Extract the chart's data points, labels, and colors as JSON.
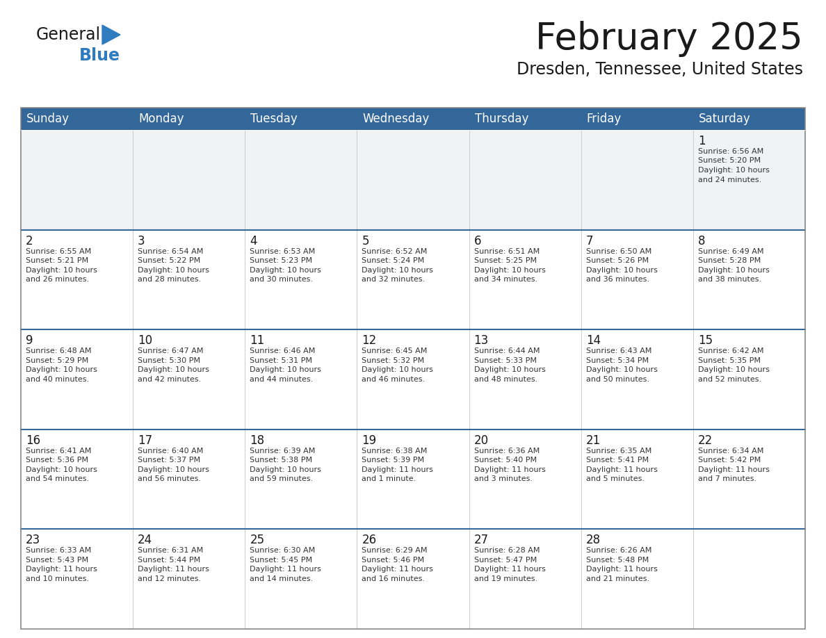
{
  "title": "February 2025",
  "subtitle": "Dresden, Tennessee, United States",
  "header_bg": "#336699",
  "header_text_color": "#ffffff",
  "cell_bg": "#ffffff",
  "first_week_bg": "#f0f2f5",
  "divider_color": "#336699",
  "border_color": "#aaaaaa",
  "day_headers": [
    "Sunday",
    "Monday",
    "Tuesday",
    "Wednesday",
    "Thursday",
    "Friday",
    "Saturday"
  ],
  "title_fontsize": 34,
  "subtitle_fontsize": 16,
  "header_fontsize": 12,
  "day_num_fontsize": 11,
  "info_fontsize": 8,
  "logo_general_color": "#1a1a1a",
  "logo_blue_color": "#2e7bbf",
  "logo_triangle_color": "#2e7bbf",
  "weeks": [
    [
      null,
      null,
      null,
      null,
      null,
      null,
      {
        "day": "1",
        "sunrise": "6:56 AM",
        "sunset": "5:20 PM",
        "daylight": "10 hours and 24 minutes."
      }
    ],
    [
      {
        "day": "2",
        "sunrise": "6:55 AM",
        "sunset": "5:21 PM",
        "daylight": "10 hours and 26 minutes."
      },
      {
        "day": "3",
        "sunrise": "6:54 AM",
        "sunset": "5:22 PM",
        "daylight": "10 hours and 28 minutes."
      },
      {
        "day": "4",
        "sunrise": "6:53 AM",
        "sunset": "5:23 PM",
        "daylight": "10 hours and 30 minutes."
      },
      {
        "day": "5",
        "sunrise": "6:52 AM",
        "sunset": "5:24 PM",
        "daylight": "10 hours and 32 minutes."
      },
      {
        "day": "6",
        "sunrise": "6:51 AM",
        "sunset": "5:25 PM",
        "daylight": "10 hours and 34 minutes."
      },
      {
        "day": "7",
        "sunrise": "6:50 AM",
        "sunset": "5:26 PM",
        "daylight": "10 hours and 36 minutes."
      },
      {
        "day": "8",
        "sunrise": "6:49 AM",
        "sunset": "5:28 PM",
        "daylight": "10 hours and 38 minutes."
      }
    ],
    [
      {
        "day": "9",
        "sunrise": "6:48 AM",
        "sunset": "5:29 PM",
        "daylight": "10 hours and 40 minutes."
      },
      {
        "day": "10",
        "sunrise": "6:47 AM",
        "sunset": "5:30 PM",
        "daylight": "10 hours and 42 minutes."
      },
      {
        "day": "11",
        "sunrise": "6:46 AM",
        "sunset": "5:31 PM",
        "daylight": "10 hours and 44 minutes."
      },
      {
        "day": "12",
        "sunrise": "6:45 AM",
        "sunset": "5:32 PM",
        "daylight": "10 hours and 46 minutes."
      },
      {
        "day": "13",
        "sunrise": "6:44 AM",
        "sunset": "5:33 PM",
        "daylight": "10 hours and 48 minutes."
      },
      {
        "day": "14",
        "sunrise": "6:43 AM",
        "sunset": "5:34 PM",
        "daylight": "10 hours and 50 minutes."
      },
      {
        "day": "15",
        "sunrise": "6:42 AM",
        "sunset": "5:35 PM",
        "daylight": "10 hours and 52 minutes."
      }
    ],
    [
      {
        "day": "16",
        "sunrise": "6:41 AM",
        "sunset": "5:36 PM",
        "daylight": "10 hours and 54 minutes."
      },
      {
        "day": "17",
        "sunrise": "6:40 AM",
        "sunset": "5:37 PM",
        "daylight": "10 hours and 56 minutes."
      },
      {
        "day": "18",
        "sunrise": "6:39 AM",
        "sunset": "5:38 PM",
        "daylight": "10 hours and 59 minutes."
      },
      {
        "day": "19",
        "sunrise": "6:38 AM",
        "sunset": "5:39 PM",
        "daylight": "11 hours and 1 minute."
      },
      {
        "day": "20",
        "sunrise": "6:36 AM",
        "sunset": "5:40 PM",
        "daylight": "11 hours and 3 minutes."
      },
      {
        "day": "21",
        "sunrise": "6:35 AM",
        "sunset": "5:41 PM",
        "daylight": "11 hours and 5 minutes."
      },
      {
        "day": "22",
        "sunrise": "6:34 AM",
        "sunset": "5:42 PM",
        "daylight": "11 hours and 7 minutes."
      }
    ],
    [
      {
        "day": "23",
        "sunrise": "6:33 AM",
        "sunset": "5:43 PM",
        "daylight": "11 hours and 10 minutes."
      },
      {
        "day": "24",
        "sunrise": "6:31 AM",
        "sunset": "5:44 PM",
        "daylight": "11 hours and 12 minutes."
      },
      {
        "day": "25",
        "sunrise": "6:30 AM",
        "sunset": "5:45 PM",
        "daylight": "11 hours and 14 minutes."
      },
      {
        "day": "26",
        "sunrise": "6:29 AM",
        "sunset": "5:46 PM",
        "daylight": "11 hours and 16 minutes."
      },
      {
        "day": "27",
        "sunrise": "6:28 AM",
        "sunset": "5:47 PM",
        "daylight": "11 hours and 19 minutes."
      },
      {
        "day": "28",
        "sunrise": "6:26 AM",
        "sunset": "5:48 PM",
        "daylight": "11 hours and 21 minutes."
      },
      null
    ]
  ]
}
